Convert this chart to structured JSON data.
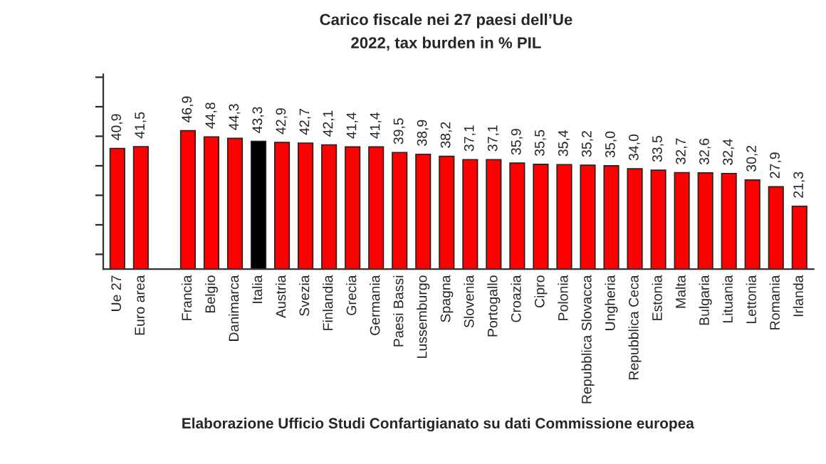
{
  "chart_data": {
    "type": "bar",
    "title": "Carico fiscale nei 27 paesi dell’Ue",
    "subtitle": "2022, tax burden in % PIL",
    "categories": [
      "Ue 27",
      "Euro area",
      null,
      "Francia",
      "Belgio",
      "Danimarca",
      "Italia",
      "Austria",
      "Svezia",
      "Finlandia",
      "Grecia",
      "Germania",
      "Paesi Bassi",
      "Lussemburgo",
      "Spagna",
      "Slovenia",
      "Portogallo",
      "Croazia",
      "Cipro",
      "Polonia",
      "Repubblica Slovacca",
      "Ungheria",
      "Repubblica Ceca",
      "Estonia",
      "Malta",
      "Bulgaria",
      "Lituania",
      "Lettonia",
      "Romania",
      "Irlanda"
    ],
    "values": [
      40.9,
      41.5,
      null,
      46.9,
      44.8,
      44.3,
      43.3,
      42.9,
      42.7,
      42.1,
      41.4,
      41.4,
      39.5,
      38.9,
      38.2,
      37.1,
      37.1,
      35.9,
      35.5,
      35.4,
      35.2,
      35.0,
      34.0,
      33.5,
      32.7,
      32.6,
      32.4,
      30.2,
      27.9,
      21.3
    ],
    "value_labels": [
      "40,9",
      "41,5",
      null,
      "46,9",
      "44,8",
      "44,3",
      "43,3",
      "42,9",
      "42,7",
      "42,1",
      "41,4",
      "41,4",
      "39,5",
      "38,9",
      "38,2",
      "37,1",
      "37,1",
      "35,9",
      "35,5",
      "35,4",
      "35,2",
      "35,0",
      "34,0",
      "33,5",
      "32,7",
      "32,6",
      "32,4",
      "30,2",
      "27,9",
      "21,3"
    ],
    "colors": [
      "#ff0000",
      "#ff0000",
      null,
      "#ff0000",
      "#ff0000",
      "#ff0000",
      "#000000",
      "#ff0000",
      "#ff0000",
      "#ff0000",
      "#ff0000",
      "#ff0000",
      "#ff0000",
      "#ff0000",
      "#ff0000",
      "#ff0000",
      "#ff0000",
      "#ff0000",
      "#ff0000",
      "#ff0000",
      "#ff0000",
      "#ff0000",
      "#ff0000",
      "#ff0000",
      "#ff0000",
      "#ff0000",
      "#ff0000",
      "#ff0000",
      "#ff0000",
      "#ff0000"
    ],
    "ylim": [
      0,
      66
    ],
    "yticks": [
      {
        "value": 5,
        "label": null
      },
      {
        "value": 15,
        "label": null
      },
      {
        "value": 25,
        "label": null
      },
      {
        "value": 35,
        "label": null
      },
      {
        "value": 45,
        "label": null
      },
      {
        "value": 55,
        "label": null
      },
      {
        "value": 65,
        "label": null
      }
    ],
    "annotations": [
      "Elaborazione Ufficio Studi Confartigianato su dati Commissione europea"
    ],
    "grid": false,
    "legend": false
  }
}
